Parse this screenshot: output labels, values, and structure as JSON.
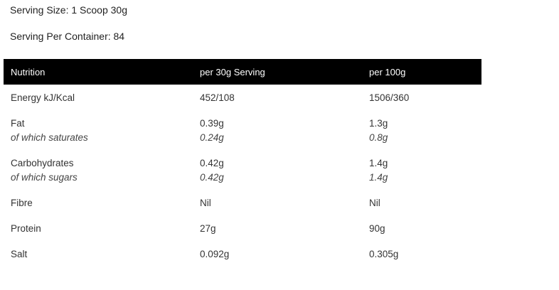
{
  "serving": {
    "size_label": "Serving Size: 1 Scoop 30g",
    "per_container_label": "Serving Per Container: 84"
  },
  "table": {
    "headers": [
      "Nutrition",
      "per 30g Serving",
      "per 100g"
    ],
    "rows": [
      {
        "name": "Energy kJ/Kcal",
        "per_serving": "452/108",
        "per_100g": "1506/360"
      },
      {
        "name": "Fat",
        "per_serving": "0.39g",
        "per_100g": "1.3g",
        "sub_name": "of which saturates",
        "sub_per_serving": "0.24g",
        "sub_per_100g": "0.8g"
      },
      {
        "name": "Carbohydrates",
        "per_serving": "0.42g",
        "per_100g": "1.4g",
        "sub_name": "of which sugars",
        "sub_per_serving": "0.42g",
        "sub_per_100g": "1.4g"
      },
      {
        "name": "Fibre",
        "per_serving": "Nil",
        "per_100g": "Nil"
      },
      {
        "name": "Protein",
        "per_serving": "27g",
        "per_100g": "90g"
      },
      {
        "name": "Salt",
        "per_serving": "0.092g",
        "per_100g": "0.305g"
      }
    ]
  },
  "colors": {
    "header_bg": "#000000",
    "header_text": "#ffffff",
    "body_text": "#333333"
  }
}
